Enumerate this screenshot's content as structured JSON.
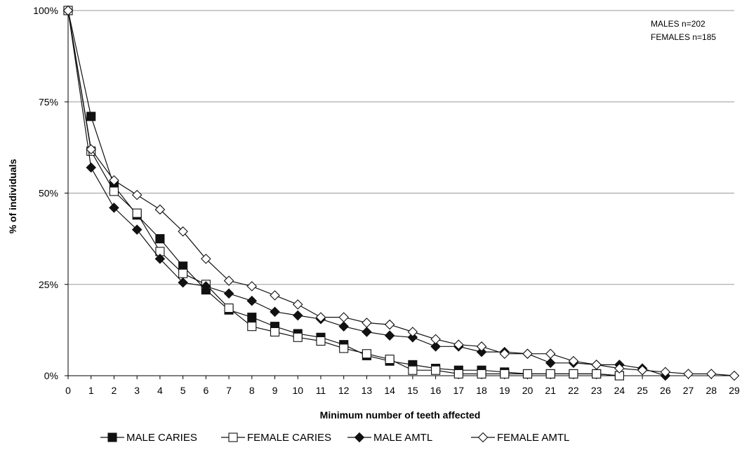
{
  "chart_data": {
    "type": "line",
    "title": "",
    "xlabel": "Minimum number of teeth affected",
    "ylabel": "% of individuals",
    "x": [
      0,
      1,
      2,
      3,
      4,
      5,
      6,
      7,
      8,
      9,
      10,
      11,
      12,
      13,
      14,
      15,
      16,
      17,
      18,
      19,
      20,
      21,
      22,
      23,
      24,
      25,
      26,
      27,
      28,
      29
    ],
    "xlim": [
      0,
      29
    ],
    "ylim": [
      0,
      100
    ],
    "y_ticks": [
      0,
      25,
      50,
      75,
      100
    ],
    "y_tick_labels": [
      "0%",
      "25%",
      "50%",
      "75%",
      "100%"
    ],
    "grid": "horizontal",
    "legend_position": "bottom",
    "annotations": [
      "MALES n=202",
      "FEMALES n=185"
    ],
    "series": [
      {
        "name": "MALE CARIES",
        "marker": "filled-square",
        "x": [
          0,
          1,
          2,
          3,
          4,
          5,
          6,
          7,
          8,
          9,
          10,
          11,
          12,
          13,
          14,
          15,
          16,
          17,
          18,
          19,
          20,
          21,
          22,
          23,
          24
        ],
        "values": [
          100,
          71,
          52,
          44,
          37.5,
          30,
          23.5,
          18,
          16,
          13.5,
          11.5,
          10.5,
          8.5,
          5.5,
          4,
          3,
          2,
          1.5,
          1.5,
          1,
          0.5,
          0.5,
          0.5,
          0.5,
          0
        ]
      },
      {
        "name": "FEMALE CARIES",
        "marker": "open-square",
        "x": [
          0,
          1,
          2,
          3,
          4,
          5,
          6,
          7,
          8,
          9,
          10,
          11,
          12,
          13,
          14,
          15,
          16,
          17,
          18,
          19,
          20,
          21,
          22,
          23,
          24
        ],
        "values": [
          100,
          61.5,
          50.5,
          44.5,
          34,
          28,
          25,
          18.5,
          13.5,
          12,
          10.5,
          9.5,
          7.5,
          6,
          4.5,
          1.5,
          1.5,
          0.5,
          0.5,
          0.5,
          0.5,
          0.5,
          0.5,
          0.5,
          0
        ]
      },
      {
        "name": "MALE AMTL",
        "marker": "filled-diamond",
        "x": [
          0,
          1,
          2,
          3,
          4,
          5,
          6,
          7,
          8,
          9,
          10,
          11,
          12,
          13,
          14,
          15,
          16,
          17,
          18,
          19,
          20,
          21,
          22,
          23,
          24,
          25,
          26
        ],
        "values": [
          100,
          57,
          46,
          40,
          32,
          25.5,
          24.5,
          22.5,
          20.5,
          17.5,
          16.5,
          15.5,
          13.5,
          12,
          11,
          10.5,
          8,
          8,
          6.5,
          6.5,
          6,
          3.5,
          3.5,
          3,
          3,
          2,
          0
        ]
      },
      {
        "name": "FEMALE AMTL",
        "marker": "open-diamond",
        "x": [
          0,
          1,
          2,
          3,
          4,
          5,
          6,
          7,
          8,
          9,
          10,
          11,
          12,
          13,
          14,
          15,
          16,
          17,
          18,
          19,
          20,
          21,
          22,
          23,
          24,
          25,
          26,
          27,
          28,
          29
        ],
        "values": [
          100,
          62,
          53.5,
          49.5,
          45.5,
          39.5,
          32,
          26,
          24.5,
          22,
          19.5,
          16,
          16,
          14.5,
          14,
          12,
          10,
          8.5,
          8,
          6,
          6,
          6,
          4,
          3,
          2,
          1.5,
          1,
          0.5,
          0.5,
          0
        ]
      }
    ]
  }
}
